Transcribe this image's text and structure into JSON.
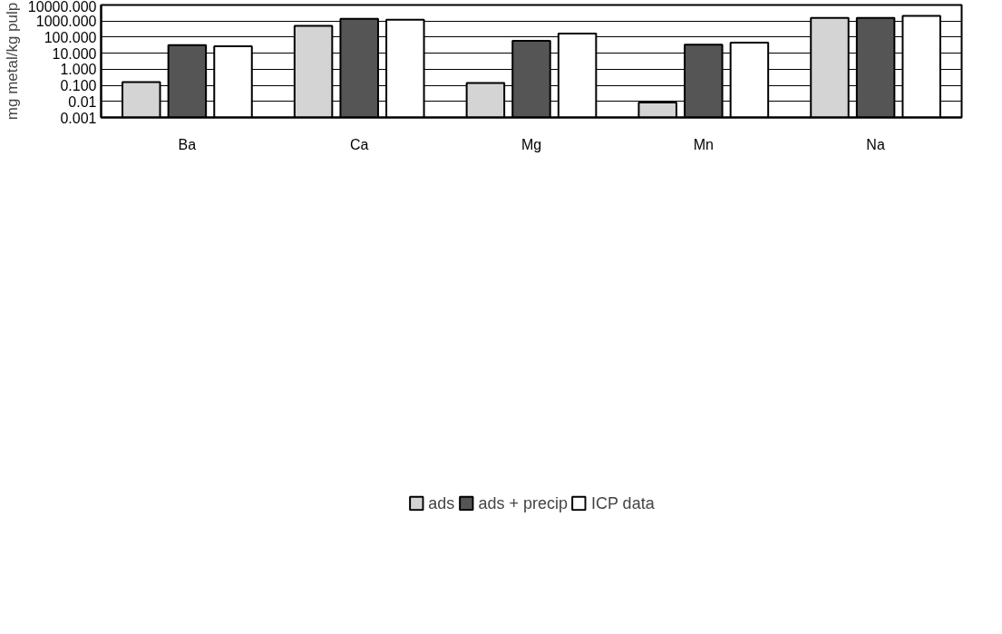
{
  "chart_data": {
    "type": "bar",
    "ylabel": "mg metal/kg pulp",
    "categories": [
      "Ba",
      "Ca",
      "Mg",
      "Mn",
      "Na"
    ],
    "series": [
      {
        "name": "ads",
        "color": "#d4d4d4",
        "values": [
          0.16,
          500,
          0.14,
          0.0085,
          1550
        ]
      },
      {
        "name": "ads + precip",
        "color": "#555555",
        "values": [
          32,
          1400,
          59,
          34,
          1550
        ]
      },
      {
        "name": "ICP data",
        "color": "#ffffff",
        "values": [
          27,
          1200,
          167,
          46,
          2100
        ]
      }
    ],
    "log": "y",
    "ylim": [
      0.001,
      10000
    ],
    "yticks": [
      0.001,
      0.01,
      {
        "value": 0.1,
        "label": "0.100"
      },
      {
        "value": 1,
        "label": "1.000"
      },
      {
        "value": 10,
        "label": "10.000"
      },
      {
        "value": 100,
        "label": "100.000"
      },
      {
        "value": 1000,
        "label": "1000.000"
      },
      {
        "value": 10000,
        "label": "10000.000"
      }
    ],
    "grid": "y",
    "legend": "bottom"
  }
}
